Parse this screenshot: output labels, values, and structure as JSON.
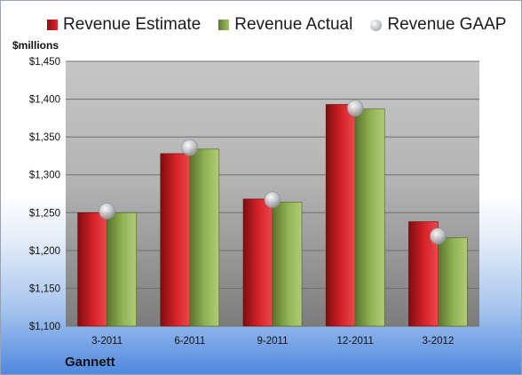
{
  "company": "Gannett",
  "unit_label": "$millions",
  "colors": {
    "estimate": "#c81e22",
    "actual": "#8aab4f",
    "gaap": "#b5b9bf"
  },
  "chart_data": {
    "type": "bar",
    "categories": [
      "3-2011",
      "6-2011",
      "9-2011",
      "12-2011",
      "3-2012"
    ],
    "series": [
      {
        "name": "Revenue Estimate",
        "kind": "bar",
        "values": [
          1250,
          1328,
          1268,
          1393,
          1238
        ]
      },
      {
        "name": "Revenue Actual",
        "kind": "bar",
        "values": [
          1250,
          1334,
          1264,
          1387,
          1217
        ]
      },
      {
        "name": "Revenue GAAP",
        "kind": "marker",
        "values": [
          1252,
          1336,
          1267,
          1388,
          1219
        ]
      }
    ],
    "ylabel": "$millions",
    "ylim": [
      1100,
      1450
    ],
    "yticks": [
      "$1,100",
      "$1,150",
      "$1,200",
      "$1,250",
      "$1,300",
      "$1,350",
      "$1,400",
      "$1,450"
    ],
    "grid": true,
    "legend": "top"
  }
}
